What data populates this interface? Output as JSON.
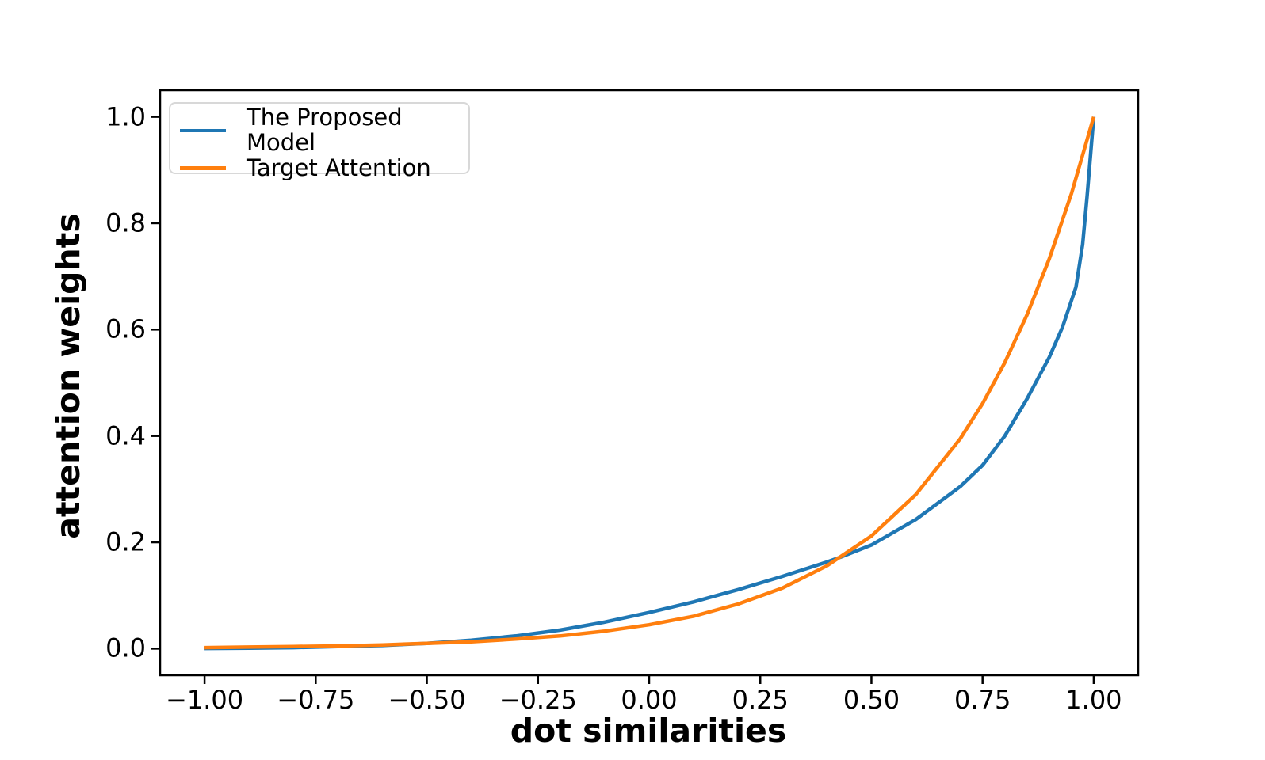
{
  "figure": {
    "background": "#ffffff",
    "text_color": "#000000",
    "spine_color": "#000000"
  },
  "chart_data": {
    "type": "line",
    "title": "",
    "xlabel": "dot similarities",
    "ylabel": "attention weights",
    "xlim": [
      -1.1,
      1.1
    ],
    "ylim": [
      -0.05,
      1.05
    ],
    "grid": false,
    "legend_position": "upper left",
    "x_ticks": {
      "values": [
        -1.0,
        -0.75,
        -0.5,
        -0.25,
        0.0,
        0.25,
        0.5,
        0.75,
        1.0
      ],
      "labels": [
        "−1.00",
        "−0.75",
        "−0.50",
        "−0.25",
        "0.00",
        "0.25",
        "0.50",
        "0.75",
        "1.00"
      ]
    },
    "y_ticks": {
      "values": [
        0.0,
        0.2,
        0.4,
        0.6,
        0.8,
        1.0
      ],
      "labels": [
        "0.0",
        "0.2",
        "0.4",
        "0.6",
        "0.8",
        "1.0"
      ]
    },
    "series": [
      {
        "name": "The Proposed Model",
        "color": "#1f77b4",
        "points": [
          [
            -1.0,
            0.0005
          ],
          [
            -0.9,
            0.001
          ],
          [
            -0.8,
            0.002
          ],
          [
            -0.7,
            0.004
          ],
          [
            -0.6,
            0.006
          ],
          [
            -0.5,
            0.01
          ],
          [
            -0.4,
            0.016
          ],
          [
            -0.3,
            0.024
          ],
          [
            -0.2,
            0.035
          ],
          [
            -0.1,
            0.05
          ],
          [
            0.0,
            0.068
          ],
          [
            0.1,
            0.088
          ],
          [
            0.2,
            0.111
          ],
          [
            0.3,
            0.136
          ],
          [
            0.4,
            0.163
          ],
          [
            0.43,
            0.172
          ],
          [
            0.5,
            0.195
          ],
          [
            0.6,
            0.243
          ],
          [
            0.7,
            0.305
          ],
          [
            0.75,
            0.345
          ],
          [
            0.8,
            0.4
          ],
          [
            0.85,
            0.47
          ],
          [
            0.9,
            0.548
          ],
          [
            0.93,
            0.605
          ],
          [
            0.96,
            0.68
          ],
          [
            0.975,
            0.76
          ],
          [
            0.985,
            0.85
          ],
          [
            1.0,
            1.0
          ]
        ]
      },
      {
        "name": "Target Attention",
        "color": "#ff7f0e",
        "points": [
          [
            -1.0,
            0.002
          ],
          [
            -0.9,
            0.003
          ],
          [
            -0.8,
            0.004
          ],
          [
            -0.7,
            0.005
          ],
          [
            -0.6,
            0.007
          ],
          [
            -0.5,
            0.01
          ],
          [
            -0.4,
            0.013
          ],
          [
            -0.3,
            0.018
          ],
          [
            -0.2,
            0.024
          ],
          [
            -0.1,
            0.033
          ],
          [
            0.0,
            0.045
          ],
          [
            0.1,
            0.061
          ],
          [
            0.2,
            0.084
          ],
          [
            0.3,
            0.114
          ],
          [
            0.4,
            0.156
          ],
          [
            0.5,
            0.212
          ],
          [
            0.6,
            0.29
          ],
          [
            0.7,
            0.395
          ],
          [
            0.75,
            0.461
          ],
          [
            0.8,
            0.538
          ],
          [
            0.85,
            0.628
          ],
          [
            0.9,
            0.733
          ],
          [
            0.95,
            0.856
          ],
          [
            1.0,
            1.0
          ]
        ]
      }
    ]
  }
}
